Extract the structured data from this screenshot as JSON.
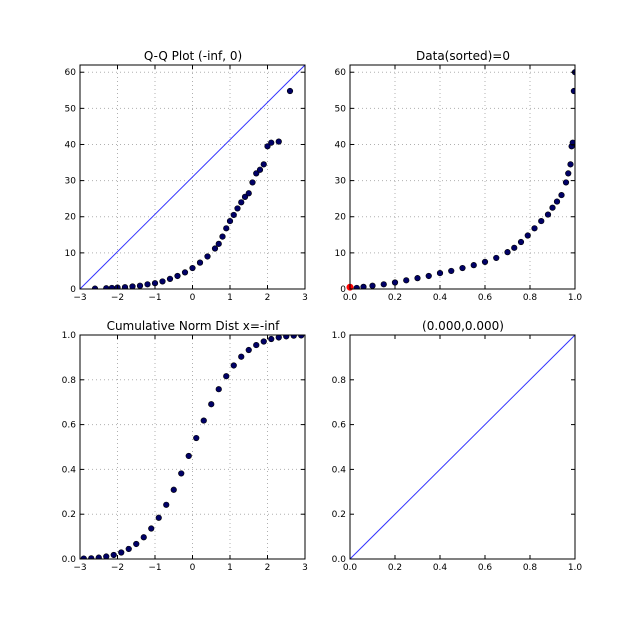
{
  "figure": {
    "background": "#ffffff"
  },
  "chart_data": [
    {
      "type": "scatter",
      "title": "Q-Q Plot (-inf, 0)",
      "xlim": [
        -3,
        3
      ],
      "ylim": [
        0,
        62
      ],
      "xticks": [
        "−3",
        "−2",
        "−1",
        "0",
        "1",
        "2",
        "3"
      ],
      "yticks": [
        "0",
        "10",
        "20",
        "30",
        "40",
        "50",
        "60"
      ],
      "xtick_values": [
        -3,
        -2,
        -1,
        0,
        1,
        2,
        3
      ],
      "ytick_values": [
        0,
        10,
        20,
        30,
        40,
        50,
        60
      ],
      "grid": true,
      "reference_line": {
        "x": [
          -3,
          3
        ],
        "y": [
          0,
          62
        ],
        "color": "#3333ff"
      },
      "marker_color": "#000066",
      "x": [
        -2.6,
        -2.3,
        -2.15,
        -2.0,
        -1.8,
        -1.6,
        -1.4,
        -1.2,
        -1.0,
        -0.8,
        -0.6,
        -0.4,
        -0.2,
        0.0,
        0.2,
        0.4,
        0.6,
        0.7,
        0.8,
        0.9,
        1.0,
        1.1,
        1.2,
        1.3,
        1.4,
        1.5,
        1.6,
        1.7,
        1.8,
        1.9,
        2.0,
        2.1,
        2.3,
        2.6
      ],
      "y": [
        0.1,
        0.2,
        0.3,
        0.4,
        0.5,
        0.7,
        0.9,
        1.3,
        1.6,
        2.1,
        2.8,
        3.6,
        4.6,
        5.8,
        7.3,
        9.0,
        11.2,
        12.5,
        14.5,
        16.8,
        18.8,
        20.5,
        22.3,
        24.0,
        25.5,
        26.5,
        29.5,
        32.0,
        33.0,
        34.5,
        39.5,
        40.5,
        40.8,
        54.8
      ]
    },
    {
      "type": "scatter",
      "title": "Data(sorted)=0",
      "xlim": [
        0,
        1
      ],
      "ylim": [
        0,
        62
      ],
      "xticks": [
        "0.0",
        "0.2",
        "0.4",
        "0.6",
        "0.8",
        "1.0"
      ],
      "yticks": [
        "0",
        "10",
        "20",
        "30",
        "40",
        "50",
        "60"
      ],
      "xtick_values": [
        0,
        0.2,
        0.4,
        0.6,
        0.8,
        1.0
      ],
      "ytick_values": [
        0,
        10,
        20,
        30,
        40,
        50,
        60
      ],
      "grid": true,
      "marker_color": "#000066",
      "highlight_point": {
        "x": 0.0,
        "y": 0.5,
        "color": "#ff0000"
      },
      "x": [
        0.0,
        0.03,
        0.06,
        0.1,
        0.15,
        0.2,
        0.25,
        0.3,
        0.35,
        0.4,
        0.45,
        0.5,
        0.55,
        0.6,
        0.65,
        0.7,
        0.73,
        0.76,
        0.79,
        0.82,
        0.85,
        0.88,
        0.9,
        0.92,
        0.94,
        0.96,
        0.97,
        0.98,
        0.985,
        0.99,
        0.995,
        1.0
      ],
      "y": [
        0.1,
        0.3,
        0.6,
        0.9,
        1.3,
        1.8,
        2.4,
        3.0,
        3.6,
        4.4,
        5.0,
        5.8,
        6.6,
        7.5,
        8.6,
        10.2,
        11.4,
        13.0,
        14.8,
        16.8,
        18.8,
        20.6,
        22.5,
        24.2,
        26.0,
        29.5,
        32.0,
        34.5,
        39.5,
        40.5,
        54.8,
        60.0
      ]
    },
    {
      "type": "scatter",
      "title": "Cumulative Norm Dist x=-inf",
      "xlim": [
        -3,
        3
      ],
      "ylim": [
        0,
        1
      ],
      "xticks": [
        "−3",
        "−2",
        "−1",
        "0",
        "1",
        "2",
        "3"
      ],
      "yticks": [
        "0.0",
        "0.2",
        "0.4",
        "0.6",
        "0.8",
        "1.0"
      ],
      "xtick_values": [
        -3,
        -2,
        -1,
        0,
        1,
        2,
        3
      ],
      "ytick_values": [
        0,
        0.2,
        0.4,
        0.6,
        0.8,
        1.0
      ],
      "grid": true,
      "marker_color": "#000066",
      "x": [
        -2.9,
        -2.7,
        -2.5,
        -2.3,
        -2.1,
        -1.9,
        -1.7,
        -1.5,
        -1.3,
        -1.1,
        -0.9,
        -0.7,
        -0.5,
        -0.3,
        -0.1,
        0.1,
        0.3,
        0.5,
        0.7,
        0.9,
        1.1,
        1.3,
        1.5,
        1.7,
        1.9,
        2.1,
        2.3,
        2.5,
        2.7,
        2.9
      ],
      "y": [
        0.002,
        0.003,
        0.006,
        0.011,
        0.018,
        0.029,
        0.045,
        0.067,
        0.097,
        0.136,
        0.184,
        0.242,
        0.309,
        0.382,
        0.46,
        0.54,
        0.618,
        0.691,
        0.758,
        0.816,
        0.864,
        0.903,
        0.933,
        0.955,
        0.971,
        0.982,
        0.989,
        0.994,
        0.997,
        0.998
      ]
    },
    {
      "type": "line",
      "title": "(0.000,0.000)",
      "xlim": [
        0,
        1
      ],
      "ylim": [
        0,
        1
      ],
      "xticks": [
        "0.0",
        "0.2",
        "0.4",
        "0.6",
        "0.8",
        "1.0"
      ],
      "yticks": [
        "0.0",
        "0.2",
        "0.4",
        "0.6",
        "0.8",
        "1.0"
      ],
      "xtick_values": [
        0,
        0.2,
        0.4,
        0.6,
        0.8,
        1.0
      ],
      "ytick_values": [
        0,
        0.2,
        0.4,
        0.6,
        0.8,
        1.0
      ],
      "grid": false,
      "line_color": "#3333ff",
      "x": [
        0,
        1
      ],
      "y": [
        0,
        1
      ]
    }
  ]
}
